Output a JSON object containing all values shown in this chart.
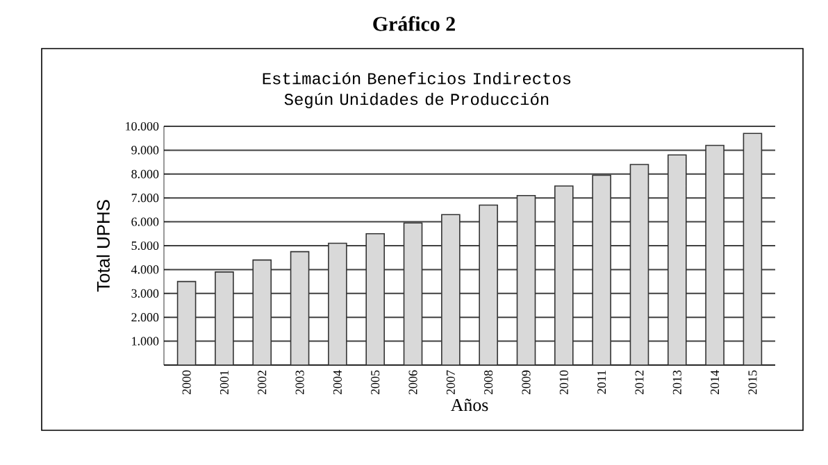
{
  "chart_data": {
    "type": "bar",
    "title": "Gráfico 2",
    "subtitle": "Estimación Beneficios Indirectos Según Unidades de Producción",
    "xlabel": "Años",
    "ylabel": "Total UPHS",
    "categories": [
      "2000",
      "2001",
      "2002",
      "2003",
      "2004",
      "2005",
      "2006",
      "2007",
      "2008",
      "2009",
      "2010",
      "2011",
      "2012",
      "2013",
      "2014",
      "2015"
    ],
    "values": [
      3500,
      3900,
      4400,
      4750,
      5100,
      5500,
      5950,
      6300,
      6700,
      7100,
      7500,
      7950,
      8400,
      8800,
      9200,
      9700
    ],
    "color": "#d9d9d9",
    "ylim": [
      0,
      10000
    ],
    "yticks": [
      {
        "value": 0,
        "label": null
      },
      {
        "value": 1000,
        "label": "1.000"
      },
      {
        "value": 2000,
        "label": "2.000"
      },
      {
        "value": 3000,
        "label": "3.000"
      },
      {
        "value": 4000,
        "label": "4.000"
      },
      {
        "value": 5000,
        "label": "5.000"
      },
      {
        "value": 6000,
        "label": "6.000"
      },
      {
        "value": 7000,
        "label": "7.000"
      },
      {
        "value": 8000,
        "label": "8.000"
      },
      {
        "value": 9000,
        "label": "9.000"
      },
      {
        "value": 10000,
        "label": "10.000"
      }
    ],
    "grid": "y"
  }
}
